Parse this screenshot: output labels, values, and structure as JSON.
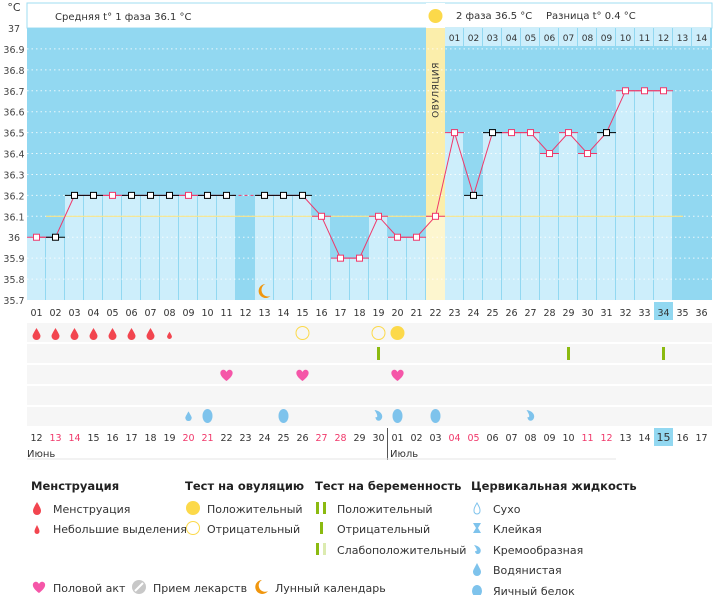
{
  "chart_data": {
    "type": "line",
    "unit_label": "°C",
    "ylim": [
      35.7,
      37
    ],
    "yticks": [
      "37",
      "36.9",
      "36.8",
      "36.7",
      "36.6",
      "36.5",
      "36.4",
      "36.3",
      "36.2",
      "36.1",
      "36",
      "35.9",
      "35.8",
      "35.7"
    ],
    "days": [
      "01",
      "02",
      "03",
      "04",
      "05",
      "06",
      "07",
      "08",
      "09",
      "10",
      "11",
      "12",
      "13",
      "14",
      "15",
      "16",
      "17",
      "18",
      "19",
      "20",
      "21",
      "22",
      "23",
      "24",
      "25",
      "26",
      "27",
      "28",
      "29",
      "30",
      "31",
      "32",
      "33",
      "34",
      "35",
      "36"
    ],
    "temperatures": [
      36.0,
      36.0,
      36.2,
      36.2,
      36.2,
      36.2,
      36.2,
      36.2,
      36.2,
      36.2,
      36.2,
      null,
      36.2,
      36.2,
      36.2,
      36.1,
      35.9,
      35.9,
      36.1,
      36.0,
      36.0,
      36.1,
      36.5,
      36.2,
      36.5,
      36.5,
      36.5,
      36.4,
      36.5,
      36.4,
      36.5,
      36.7,
      36.7,
      36.7,
      null,
      null
    ],
    "marker_black": [
      2,
      3,
      4,
      6,
      7,
      8,
      10,
      11,
      13,
      14,
      15,
      24,
      25,
      31
    ],
    "cover_line": 36.1,
    "ovulation_day": 22,
    "ovulation_label": "ОВУЛЯЦИЯ",
    "current_day": 34,
    "phase2_days": [
      "01",
      "02",
      "03",
      "04",
      "05",
      "06",
      "07",
      "08",
      "09",
      "10",
      "11",
      "12",
      "13",
      "14"
    ],
    "phase1_text": "Средняя t° 1 фаза",
    "phase1_value": "36.1 °C",
    "phase2_text": "2 фаза",
    "phase2_value": "36.5 °C",
    "diff_text": "Разница t°",
    "diff_value": "0.4 °C",
    "moon_day": 13,
    "dates": [
      "12",
      "13",
      "14",
      "15",
      "16",
      "17",
      "18",
      "19",
      "20",
      "21",
      "22",
      "23",
      "24",
      "25",
      "26",
      "27",
      "28",
      "29",
      "30",
      "01",
      "02",
      "03",
      "04",
      "05",
      "06",
      "07",
      "08",
      "09",
      "10",
      "11",
      "12",
      "13",
      "14",
      "15",
      "16",
      "17"
    ],
    "red_dates": [
      2,
      3,
      9,
      10,
      16,
      17,
      23,
      24,
      30,
      31
    ],
    "months": [
      "Июнь",
      "Июль"
    ],
    "rows": {
      "menstruation": {
        "big": [
          1,
          2,
          3,
          4,
          5,
          6,
          7
        ],
        "small": [
          8
        ]
      },
      "ovulation_test": {
        "negative": [
          15,
          19
        ],
        "positive": [
          20
        ]
      },
      "pregnancy_test": {
        "negative": [
          19,
          29,
          34
        ]
      },
      "sex": [
        11,
        15,
        20
      ],
      "cervical": {
        "watery": [
          9
        ],
        "egg_white": [
          10,
          14,
          20,
          22
        ],
        "creamy": [
          19,
          27
        ]
      }
    },
    "colors": {
      "bg": "#92d8f1",
      "bar": "#cdeefb",
      "line": "#f0386a",
      "cover": "#f8e58a",
      "ovulation": "#fbeeab",
      "menstruation": "#f2454f",
      "sex": "#f556a8",
      "test": "#8bba10",
      "ovtest": "#fcd94a",
      "cervical": "#7ec3ec",
      "moon": "#f0960e",
      "red_date": "#f0386a"
    }
  },
  "legend": {
    "menstruation": {
      "title": "Менструация",
      "items": [
        "Менструация",
        "Небольшие выделения"
      ]
    },
    "ovulation_test": {
      "title": "Тест на овуляцию",
      "items": [
        "Положительный",
        "Отрицательный"
      ]
    },
    "pregnancy_test": {
      "title": "Тест на беременность",
      "items": [
        "Положительный",
        "Отрицательный",
        "Слабоположительный"
      ]
    },
    "cervical": {
      "title": "Цервикальная жидкость",
      "items": [
        "Сухо",
        "Клейкая",
        "Кремообразная",
        "Водянистая",
        "Яичный белок"
      ]
    },
    "other": [
      "Половой акт",
      "Прием лекарств",
      "Лунный календарь"
    ]
  }
}
